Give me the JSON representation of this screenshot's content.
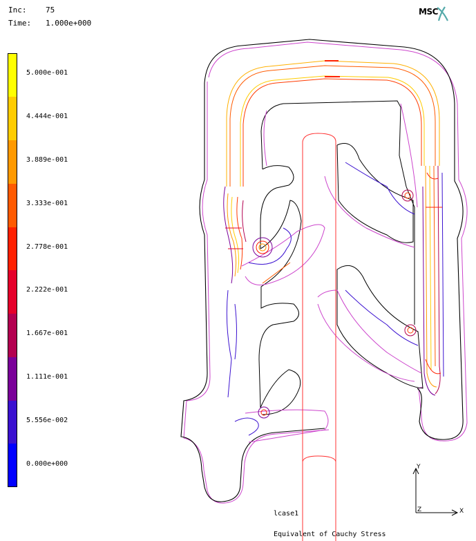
{
  "header": {
    "inc_label": "Inc:",
    "inc_value": "75",
    "time_label": "Time:",
    "time_value": "1.000e+000"
  },
  "logo": {
    "text": "MSC"
  },
  "legend": {
    "levels": [
      {
        "label": "5.000e-001",
        "color": "#ffff00"
      },
      {
        "label": "4.444e-001",
        "color": "#ffcc00"
      },
      {
        "label": "3.889e-001",
        "color": "#ff9900"
      },
      {
        "label": "3.333e-001",
        "color": "#ff5a00"
      },
      {
        "label": "2.778e-001",
        "color": "#ff2000"
      },
      {
        "label": "2.222e-001",
        "color": "#e5002a"
      },
      {
        "label": "1.667e-001",
        "color": "#b30050"
      },
      {
        "label": "1.111e-001",
        "color": "#7a0099"
      },
      {
        "label": "5.556e-002",
        "color": "#3a10d0"
      },
      {
        "label": "0.000e+000",
        "color": "#0000ff"
      }
    ]
  },
  "footer": {
    "case": "lcase1",
    "result": "Equivalent of Cauchy Stress"
  },
  "axes": {
    "y": "Y",
    "x": "X",
    "z": "Z"
  }
}
